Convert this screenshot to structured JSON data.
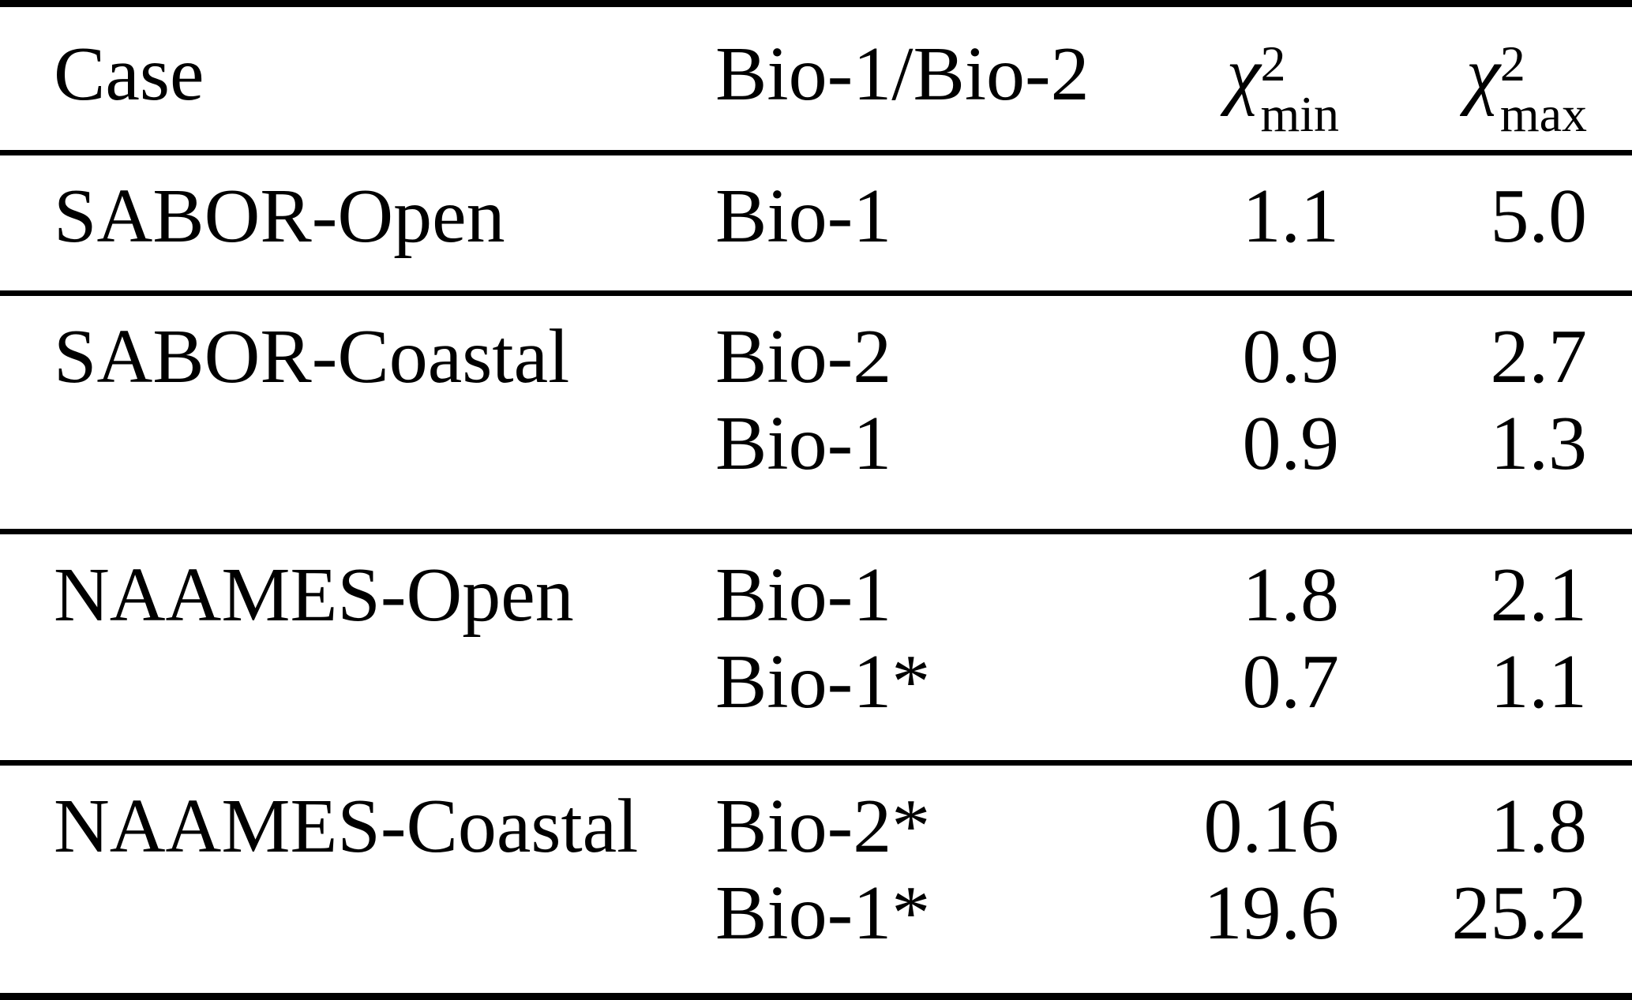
{
  "table": {
    "headers": {
      "case": "Case",
      "bio": "Bio-1/Bio-2",
      "chi_min": {
        "symbol": "χ",
        "sup": "2",
        "sub": "min"
      },
      "chi_max": {
        "symbol": "χ",
        "sup": "2",
        "sub": "max"
      }
    },
    "sections": [
      {
        "case": "SABOR-Open",
        "rows": [
          {
            "bio": "Bio-1",
            "chi_min": "1.1",
            "chi_max": "5.0"
          }
        ]
      },
      {
        "case": "SABOR-Coastal",
        "rows": [
          {
            "bio": "Bio-2",
            "chi_min": "0.9",
            "chi_max": "2.7"
          },
          {
            "bio": "Bio-1",
            "chi_min": "0.9",
            "chi_max": "1.3"
          }
        ]
      },
      {
        "case": "NAAMES-Open",
        "rows": [
          {
            "bio": "Bio-1",
            "chi_min": "1.8",
            "chi_max": "2.1"
          },
          {
            "bio": "Bio-1*",
            "chi_min": "0.7",
            "chi_max": "1.1"
          }
        ]
      },
      {
        "case": "NAAMES-Coastal",
        "rows": [
          {
            "bio": "Bio-2*",
            "chi_min": "0.16",
            "chi_max": "1.8"
          },
          {
            "bio": "Bio-1*",
            "chi_min": "19.6",
            "chi_max": "25.2"
          }
        ]
      }
    ],
    "colors": {
      "text": "#000000",
      "background": "#ffffff",
      "rule": "#000000"
    }
  }
}
